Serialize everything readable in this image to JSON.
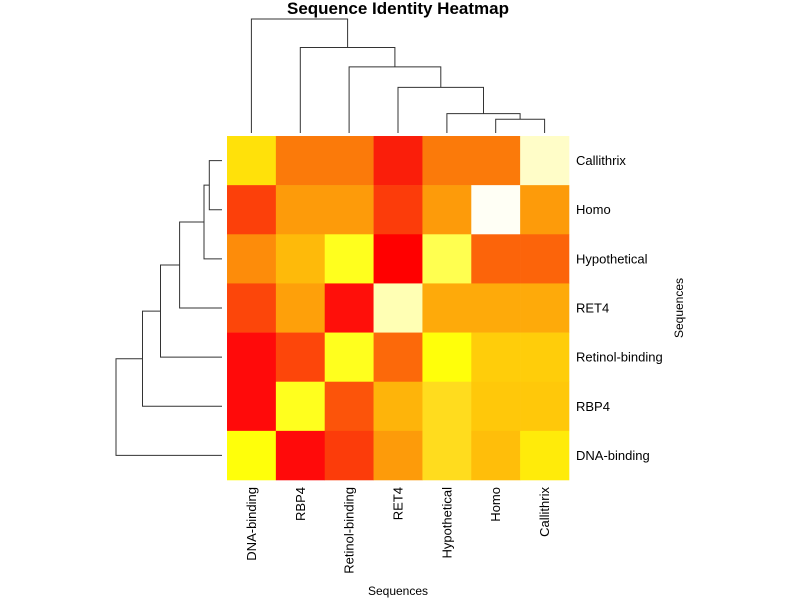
{
  "chart_data": {
    "type": "heatmap",
    "title": "Sequence Identity Heatmap",
    "xlabel": "Sequences",
    "ylabel": "Sequences",
    "columns": [
      "DNA-binding",
      "RBP4",
      "Retinol-binding",
      "RET4",
      "Hypothetical",
      "Homo",
      "Callithrix"
    ],
    "rows": [
      "Callithrix",
      "Homo",
      "Hypothetical",
      "RET4",
      "Retinol-binding",
      "RBP4",
      "DNA-binding"
    ],
    "colors": [
      [
        "#FFE10A",
        "#FB7A0A",
        "#FB7A0A",
        "#FA1E0A",
        "#FB7A0A",
        "#FB7A0A",
        "#FFFDC8"
      ],
      [
        "#FC400A",
        "#FD9B0A",
        "#FD9B0A",
        "#FC3C0A",
        "#FD9B0A",
        "#FFFFF5",
        "#FD9B0A"
      ],
      [
        "#FD8C0A",
        "#FEBA0A",
        "#FFFF1E",
        "#FF0000",
        "#FFFF50",
        "#FC640A",
        "#FC640A"
      ],
      [
        "#FC460A",
        "#FEA00A",
        "#FF0F0A",
        "#FFFFB4",
        "#FEAA0A",
        "#FEAA0A",
        "#FEAA0A"
      ],
      [
        "#FF0A0A",
        "#FD460A",
        "#FFFF1E",
        "#FC690A",
        "#FFFF0A",
        "#FFCD0A",
        "#FFCD0A"
      ],
      [
        "#FF0A0A",
        "#FFFF1E",
        "#FC540A",
        "#FEB40A",
        "#FFDC1E",
        "#FFC80A",
        "#FFC80A"
      ],
      [
        "#FFFF0A",
        "#FF0A0A",
        "#FC3C0A",
        "#FD9B0A",
        "#FFDC1E",
        "#FFBE0A",
        "#FFEB0A"
      ]
    ],
    "col_dendrogram": {
      "order": [
        "DNA-binding",
        "RBP4",
        "Retinol-binding",
        "RET4",
        "Hypothetical",
        "Homo",
        "Callithrix"
      ],
      "merges": [
        {
          "left": "Homo",
          "right": "Callithrix",
          "height": 0.12
        },
        {
          "left": "Hypothetical",
          "right": "Homo+Callithrix",
          "height": 0.17
        },
        {
          "left": "RET4",
          "right": "Hypothetical+Homo+Callithrix",
          "height": 0.4
        },
        {
          "left": "Retinol-binding",
          "right": "RET4+Hypothetical+Homo+Callithrix",
          "height": 0.58
        },
        {
          "left": "RBP4",
          "right": "Retinol-binding+RET4+Hypothetical+Homo+Callithrix",
          "height": 0.75
        },
        {
          "left": "DNA-binding",
          "right": "RBP4+Retinol-binding+RET4+Hypothetical+Homo+Callithrix",
          "height": 1.0
        }
      ]
    },
    "row_dendrogram": {
      "order": [
        "Callithrix",
        "Homo",
        "Hypothetical",
        "RET4",
        "Retinol-binding",
        "RBP4",
        "DNA-binding"
      ],
      "merges": [
        {
          "left": "Callithrix",
          "right": "Homo",
          "height": 0.12
        },
        {
          "left": "Callithrix+Homo",
          "right": "Hypothetical",
          "height": 0.17
        },
        {
          "left": "Callithrix+Homo+Hypothetical",
          "right": "RET4",
          "height": 0.4
        },
        {
          "left": "Callithrix+Homo+Hypothetical+RET4",
          "right": "Retinol-binding",
          "height": 0.58
        },
        {
          "left": "Callithrix+Homo+Hypothetical+RET4+Retinol-binding",
          "right": "RBP4",
          "height": 0.75
        },
        {
          "left": "Callithrix+Homo+Hypothetical+RET4+Retinol-binding+RBP4",
          "right": "DNA-binding",
          "height": 1.0
        }
      ]
    }
  }
}
